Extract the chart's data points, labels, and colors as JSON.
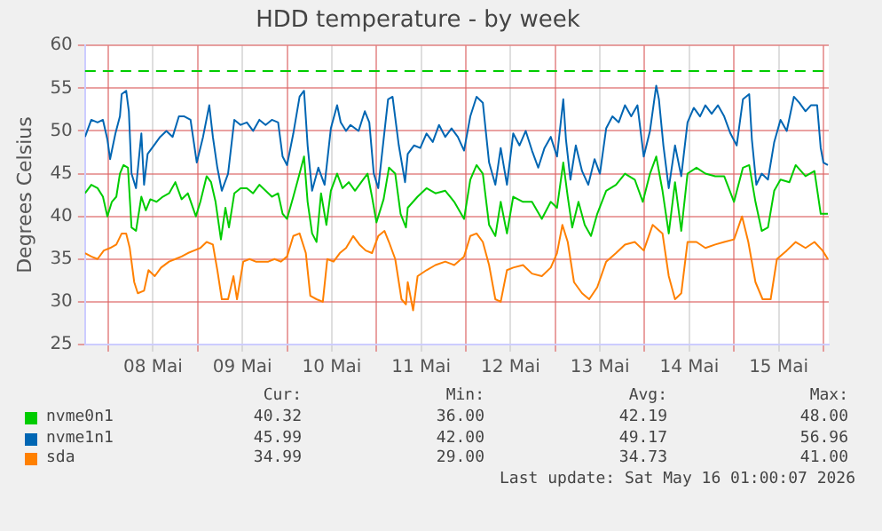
{
  "chart_data": {
    "type": "line",
    "title": "HDD temperature - by week",
    "ylabel": "Degrees Celsius",
    "xlim": [
      7.74,
      16.06
    ],
    "xticks": [
      {
        "value": 8,
        "label": null
      },
      {
        "value": 8.5,
        "label": "08 Mai"
      },
      {
        "value": 9,
        "label": null
      },
      {
        "value": 9.5,
        "label": "09 Mai"
      },
      {
        "value": 10,
        "label": null
      },
      {
        "value": 10.5,
        "label": "10 Mai"
      },
      {
        "value": 11,
        "label": null
      },
      {
        "value": 11.5,
        "label": "11 Mai"
      },
      {
        "value": 12,
        "label": null
      },
      {
        "value": 12.5,
        "label": "12 Mai"
      },
      {
        "value": 13,
        "label": null
      },
      {
        "value": 13.5,
        "label": "13 Mai"
      },
      {
        "value": 14,
        "label": null
      },
      {
        "value": 14.5,
        "label": "14 Mai"
      },
      {
        "value": 15,
        "label": null
      },
      {
        "value": 15.5,
        "label": "15 Mai"
      },
      {
        "value": 16,
        "label": null
      }
    ],
    "ylim": [
      25,
      60
    ],
    "yticks": [
      25,
      30,
      35,
      40,
      45,
      50,
      55,
      60
    ],
    "grid": true,
    "legend": "bottom",
    "marker": "none",
    "line_style": "solid",
    "ref_lines": [
      {
        "axis": "y",
        "value": 57,
        "color": "#00cc00",
        "line_style": "dashed"
      }
    ],
    "series": [
      {
        "name": "nvme0n1",
        "color": "#00cc00",
        "x": [
          7.74,
          7.81,
          7.88,
          7.94,
          7.99,
          8.04,
          8.09,
          8.13,
          8.17,
          8.22,
          8.26,
          8.31,
          8.37,
          8.42,
          8.47,
          8.54,
          8.61,
          8.68,
          8.75,
          8.82,
          8.89,
          8.98,
          9.03,
          9.1,
          9.15,
          9.2,
          9.26,
          9.31,
          9.35,
          9.41,
          9.48,
          9.55,
          9.62,
          9.69,
          9.76,
          9.83,
          9.9,
          9.95,
          10.0,
          10.07,
          10.14,
          10.19,
          10.23,
          10.28,
          10.33,
          10.38,
          10.44,
          10.49,
          10.56,
          10.62,
          10.69,
          10.76,
          10.83,
          10.9,
          10.95,
          11.0,
          11.08,
          11.14,
          11.21,
          11.27,
          11.33,
          11.35,
          11.46,
          11.56,
          11.66,
          11.77,
          11.87,
          11.98,
          12.05,
          12.12,
          12.19,
          12.26,
          12.33,
          12.39,
          12.46,
          12.53,
          12.64,
          12.74,
          12.85,
          12.95,
          13.02,
          13.09,
          13.14,
          13.19,
          13.26,
          13.33,
          13.4,
          13.47,
          13.57,
          13.68,
          13.78,
          13.89,
          13.98,
          14.06,
          14.13,
          14.2,
          14.27,
          14.34,
          14.41,
          14.48,
          14.58,
          14.68,
          14.79,
          14.89,
          15.0,
          15.1,
          15.17,
          15.24,
          15.31,
          15.38,
          15.45,
          15.52,
          15.62,
          15.69,
          15.8,
          15.9,
          15.97,
          16.05
        ],
        "values": [
          42.7,
          43.7,
          43.3,
          42.3,
          40.0,
          41.7,
          42.3,
          45.0,
          46.0,
          45.7,
          38.7,
          38.3,
          42.3,
          40.7,
          42.0,
          41.7,
          42.3,
          42.7,
          44.0,
          42.0,
          42.7,
          40.0,
          41.7,
          44.7,
          44.0,
          41.7,
          37.3,
          41.0,
          38.7,
          42.7,
          43.3,
          43.3,
          42.7,
          43.7,
          43.0,
          42.3,
          42.7,
          40.3,
          39.7,
          42.3,
          45.0,
          47.0,
          41.7,
          38.0,
          37.0,
          42.7,
          39.0,
          43.0,
          45.0,
          43.3,
          44.0,
          43.0,
          44.0,
          45.0,
          42.3,
          39.3,
          42.0,
          45.7,
          45.0,
          40.3,
          38.7,
          41.0,
          42.3,
          43.3,
          42.7,
          43.0,
          41.7,
          39.7,
          44.3,
          46.0,
          45.0,
          39.0,
          37.7,
          41.7,
          38.0,
          42.3,
          41.7,
          41.7,
          39.7,
          41.7,
          41.0,
          46.3,
          42.3,
          38.7,
          41.7,
          39.0,
          37.7,
          40.3,
          43.0,
          43.7,
          45.0,
          44.3,
          41.7,
          45.0,
          47.0,
          43.0,
          38.0,
          44.0,
          38.3,
          45.0,
          45.7,
          45.0,
          44.7,
          44.7,
          41.7,
          45.7,
          46.0,
          41.7,
          38.3,
          38.7,
          43.0,
          44.3,
          44.0,
          46.0,
          44.7,
          45.3,
          40.3,
          40.3
        ]
      },
      {
        "name": "nvme1n1",
        "color": "#0066b3",
        "x": [
          7.74,
          7.81,
          7.88,
          7.94,
          7.99,
          8.02,
          8.08,
          8.13,
          8.15,
          8.2,
          8.23,
          8.26,
          8.31,
          8.37,
          8.4,
          8.44,
          8.51,
          8.58,
          8.65,
          8.72,
          8.79,
          8.85,
          8.92,
          8.99,
          9.06,
          9.13,
          9.17,
          9.22,
          9.27,
          9.34,
          9.41,
          9.48,
          9.55,
          9.62,
          9.69,
          9.76,
          9.83,
          9.9,
          9.95,
          10.0,
          10.07,
          10.14,
          10.19,
          10.23,
          10.28,
          10.35,
          10.42,
          10.49,
          10.56,
          10.6,
          10.66,
          10.71,
          10.8,
          10.87,
          10.92,
          10.97,
          11.02,
          11.08,
          11.13,
          11.18,
          11.25,
          11.32,
          11.35,
          11.42,
          11.49,
          11.56,
          11.63,
          11.7,
          11.77,
          11.84,
          11.91,
          11.98,
          12.05,
          12.12,
          12.19,
          12.26,
          12.33,
          12.39,
          12.46,
          12.53,
          12.6,
          12.67,
          12.74,
          12.81,
          12.88,
          12.95,
          13.02,
          13.09,
          13.12,
          13.17,
          13.23,
          13.3,
          13.37,
          13.44,
          13.5,
          13.57,
          13.64,
          13.71,
          13.78,
          13.85,
          13.92,
          13.99,
          14.06,
          14.13,
          14.16,
          14.21,
          14.27,
          14.34,
          14.41,
          14.48,
          14.55,
          14.62,
          14.68,
          14.75,
          14.82,
          14.89,
          14.96,
          15.03,
          15.1,
          15.17,
          15.2,
          15.25,
          15.31,
          15.38,
          15.45,
          15.52,
          15.59,
          15.67,
          15.73,
          15.8,
          15.86,
          15.93,
          15.97,
          16.0,
          16.05
        ],
        "values": [
          49.3,
          51.3,
          51.0,
          51.3,
          49.0,
          46.7,
          49.7,
          51.7,
          54.3,
          54.7,
          52.3,
          45.0,
          43.3,
          49.7,
          43.7,
          47.3,
          48.3,
          49.3,
          50.0,
          49.3,
          51.7,
          51.7,
          51.3,
          46.3,
          49.3,
          53.0,
          49.3,
          45.7,
          43.0,
          45.0,
          51.3,
          50.7,
          51.0,
          50.0,
          51.3,
          50.7,
          51.3,
          51.0,
          47.0,
          46.0,
          49.7,
          54.0,
          54.7,
          48.3,
          43.0,
          45.7,
          43.7,
          50.3,
          53.0,
          51.0,
          50.0,
          50.7,
          50.0,
          52.3,
          51.0,
          45.0,
          43.3,
          49.0,
          53.7,
          54.0,
          48.3,
          44.0,
          47.3,
          48.3,
          48.0,
          49.7,
          48.7,
          50.7,
          49.3,
          50.3,
          49.3,
          47.7,
          51.7,
          54.0,
          53.3,
          46.3,
          43.7,
          48.0,
          43.7,
          49.7,
          48.3,
          50.0,
          47.7,
          45.7,
          48.0,
          49.3,
          47.0,
          53.7,
          49.0,
          44.3,
          48.3,
          45.3,
          43.7,
          46.7,
          45.0,
          50.3,
          51.7,
          51.0,
          53.0,
          51.7,
          53.0,
          47.0,
          50.0,
          55.3,
          53.7,
          48.3,
          43.3,
          48.3,
          44.7,
          51.0,
          52.7,
          51.7,
          53.0,
          52.0,
          53.0,
          51.7,
          49.7,
          48.3,
          53.7,
          54.3,
          49.0,
          43.7,
          45.0,
          44.3,
          48.7,
          51.3,
          50.0,
          54.0,
          53.3,
          52.3,
          53.0,
          53.0,
          48.0,
          46.3,
          46.0
        ]
      },
      {
        "name": "sda",
        "color": "#ff8000",
        "x": [
          7.74,
          7.81,
          7.88,
          7.95,
          8.02,
          8.09,
          8.15,
          8.2,
          8.24,
          8.29,
          8.33,
          8.4,
          8.45,
          8.52,
          8.59,
          8.68,
          8.75,
          8.82,
          8.89,
          8.96,
          9.03,
          9.1,
          9.17,
          9.22,
          9.27,
          9.34,
          9.4,
          9.44,
          9.51,
          9.58,
          9.65,
          9.72,
          9.79,
          9.86,
          9.93,
          10.0,
          10.07,
          10.14,
          10.21,
          10.26,
          10.33,
          10.4,
          10.45,
          10.52,
          10.59,
          10.66,
          10.74,
          10.81,
          10.88,
          10.95,
          11.02,
          11.09,
          11.14,
          11.21,
          11.28,
          11.33,
          11.35,
          11.41,
          11.46,
          11.56,
          11.66,
          11.77,
          11.87,
          11.98,
          12.05,
          12.12,
          12.19,
          12.26,
          12.33,
          12.39,
          12.46,
          12.53,
          12.64,
          12.74,
          12.85,
          12.95,
          13.02,
          13.08,
          13.14,
          13.21,
          13.3,
          13.38,
          13.47,
          13.57,
          13.68,
          13.78,
          13.89,
          13.99,
          14.09,
          14.2,
          14.27,
          14.34,
          14.41,
          14.48,
          14.58,
          14.68,
          14.79,
          14.89,
          15.0,
          15.09,
          15.16,
          15.24,
          15.32,
          15.41,
          15.48,
          15.59,
          15.69,
          15.8,
          15.9,
          15.99,
          16.05
        ],
        "values": [
          35.7,
          35.3,
          35.0,
          36.0,
          36.3,
          36.7,
          38.0,
          38.0,
          36.3,
          32.3,
          31.0,
          31.3,
          33.7,
          33.0,
          34.0,
          34.7,
          35.0,
          35.3,
          35.7,
          36.0,
          36.3,
          37.0,
          36.7,
          33.7,
          30.3,
          30.3,
          33.0,
          30.3,
          34.7,
          35.0,
          34.7,
          34.7,
          34.7,
          35.0,
          34.7,
          35.3,
          37.7,
          38.0,
          35.7,
          30.7,
          30.3,
          30.0,
          35.0,
          34.7,
          35.7,
          36.3,
          37.7,
          36.7,
          36.0,
          35.7,
          37.7,
          38.3,
          37.0,
          35.0,
          30.3,
          29.7,
          32.3,
          29.0,
          33.0,
          33.7,
          34.3,
          34.7,
          34.3,
          35.3,
          37.7,
          38.0,
          37.0,
          34.3,
          30.3,
          30.0,
          33.7,
          34.0,
          34.3,
          33.3,
          33.0,
          34.0,
          35.7,
          39.0,
          37.0,
          32.3,
          31.0,
          30.3,
          31.7,
          34.7,
          35.7,
          36.7,
          37.0,
          36.0,
          39.0,
          38.0,
          33.0,
          30.3,
          31.0,
          37.0,
          37.0,
          36.3,
          36.7,
          37.0,
          37.3,
          40.0,
          37.0,
          32.3,
          30.3,
          30.3,
          35.0,
          36.0,
          37.0,
          36.3,
          37.0,
          36.0,
          35.0
        ]
      }
    ],
    "annotations": [
      "Cur:",
      "Min:",
      "Avg:",
      "Max:",
      "40.32",
      "36.00",
      "42.19",
      "48.00",
      "45.99",
      "42.00",
      "49.17",
      "56.96",
      "34.99",
      "29.00",
      "34.73",
      "41.00",
      "Last update: Sat May 16 01:00:07 2026"
    ]
  }
}
